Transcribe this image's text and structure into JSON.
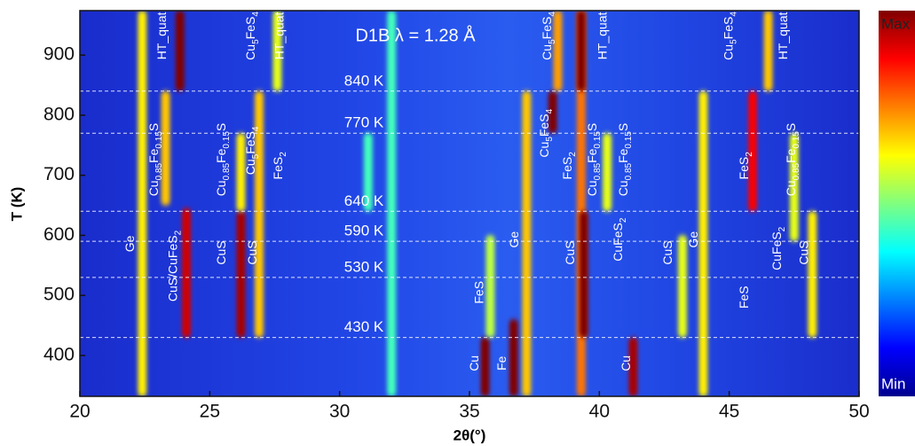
{
  "chart_data": {
    "type": "heatmap",
    "title": "D1B λ = 1.28 Å",
    "x_label": "2θ(°)",
    "y_label": "T (K)",
    "xlim": [
      20,
      50
    ],
    "xticks": [
      20,
      25,
      30,
      35,
      40,
      45,
      50
    ],
    "ylim": [
      332,
      974
    ],
    "yticks": [
      400,
      500,
      600,
      700,
      800,
      900
    ],
    "colorbar": {
      "max_label": "Max",
      "min_label": "Min"
    },
    "temperature_lines": [
      {
        "value": 840,
        "label": "840 K"
      },
      {
        "value": 770,
        "label": "770 K"
      },
      {
        "value": 640,
        "label": "640 K"
      },
      {
        "value": 590,
        "label": "590 K"
      },
      {
        "value": 530,
        "label": "530 K"
      },
      {
        "value": 430,
        "label": "430 K"
      }
    ],
    "streaks": [
      {
        "x": 22.4,
        "tmin": 332,
        "tmax": 974,
        "level": 0.55
      },
      {
        "x": 23.3,
        "tmin": 650,
        "tmax": 840,
        "level": 0.6
      },
      {
        "x": 23.85,
        "tmin": 840,
        "tmax": 974,
        "level": 1.0
      },
      {
        "x": 24.1,
        "tmin": 430,
        "tmax": 645,
        "level": 0.9
      },
      {
        "x": 26.2,
        "tmin": 430,
        "tmax": 640,
        "level": 0.95
      },
      {
        "x": 26.2,
        "tmin": 640,
        "tmax": 770,
        "level": 0.55
      },
      {
        "x": 26.9,
        "tmin": 430,
        "tmax": 840,
        "level": 0.6
      },
      {
        "x": 27.6,
        "tmin": 840,
        "tmax": 974,
        "level": 0.5
      },
      {
        "x": 31.1,
        "tmin": 640,
        "tmax": 770,
        "level": 0.3
      },
      {
        "x": 32.0,
        "tmin": 332,
        "tmax": 974,
        "level": 0.3
      },
      {
        "x": 35.6,
        "tmin": 332,
        "tmax": 430,
        "level": 1.0
      },
      {
        "x": 35.8,
        "tmin": 430,
        "tmax": 600,
        "level": 0.45
      },
      {
        "x": 36.7,
        "tmin": 332,
        "tmax": 460,
        "level": 1.0
      },
      {
        "x": 37.2,
        "tmin": 332,
        "tmax": 840,
        "level": 0.6
      },
      {
        "x": 38.2,
        "tmin": 770,
        "tmax": 840,
        "level": 1.0
      },
      {
        "x": 38.4,
        "tmin": 840,
        "tmax": 974,
        "level": 0.65
      },
      {
        "x": 39.3,
        "tmin": 332,
        "tmax": 974,
        "level": 0.7
      },
      {
        "x": 39.4,
        "tmin": 430,
        "tmax": 640,
        "level": 1.0
      },
      {
        "x": 39.3,
        "tmin": 840,
        "tmax": 974,
        "level": 1.0
      },
      {
        "x": 40.3,
        "tmin": 640,
        "tmax": 770,
        "level": 0.5
      },
      {
        "x": 41.3,
        "tmin": 332,
        "tmax": 430,
        "level": 0.95
      },
      {
        "x": 43.2,
        "tmin": 430,
        "tmax": 600,
        "level": 0.5
      },
      {
        "x": 44.0,
        "tmin": 332,
        "tmax": 840,
        "level": 0.55
      },
      {
        "x": 45.9,
        "tmin": 640,
        "tmax": 840,
        "level": 0.85
      },
      {
        "x": 46.5,
        "tmin": 840,
        "tmax": 974,
        "level": 0.6
      },
      {
        "x": 47.5,
        "tmin": 590,
        "tmax": 770,
        "level": 0.5
      },
      {
        "x": 48.2,
        "tmin": 430,
        "tmax": 640,
        "level": 0.55
      }
    ],
    "annotations": [
      {
        "text": "HT_quat",
        "x": 23.18,
        "y": 932
      },
      {
        "text": "Cu5FeS4",
        "x": 26.6,
        "y": 932
      },
      {
        "text": "HT_quat",
        "x": 27.7,
        "y": 932
      },
      {
        "text": "Cu5FeS4",
        "x": 38.0,
        "y": 932
      },
      {
        "text": "HT_quat",
        "x": 40.15,
        "y": 932
      },
      {
        "text": "Cu5FeS4",
        "x": 45.0,
        "y": 932
      },
      {
        "text": "HT_quat",
        "x": 47.1,
        "y": 932
      },
      {
        "text": "Cu0.85Fe0.15S",
        "x": 22.87,
        "y": 726
      },
      {
        "text": "Cu0.85Fe0.15S",
        "x": 25.47,
        "y": 726
      },
      {
        "text": "Cu5FeS4",
        "x": 26.6,
        "y": 741
      },
      {
        "text": "FeS2",
        "x": 27.65,
        "y": 716
      },
      {
        "text": "Cu5FeS4",
        "x": 37.9,
        "y": 770
      },
      {
        "text": "FeS2",
        "x": 38.8,
        "y": 716
      },
      {
        "text": "Cu0.85Fe0.15S",
        "x": 39.75,
        "y": 726
      },
      {
        "text": "Cu0.85Fe0.15S",
        "x": 40.95,
        "y": 726
      },
      {
        "text": "FeS2",
        "x": 45.6,
        "y": 716
      },
      {
        "text": "Cu0.85Fe0.15S",
        "x": 47.4,
        "y": 726
      },
      {
        "text": "Ge",
        "x": 21.95,
        "y": 586
      },
      {
        "text": "CuS/CuFeS2",
        "x": 23.6,
        "y": 549
      },
      {
        "text": "CuS",
        "x": 25.47,
        "y": 571
      },
      {
        "text": "CuS",
        "x": 26.66,
        "y": 571
      },
      {
        "text": "FeS",
        "x": 35.4,
        "y": 505
      },
      {
        "text": "Ge",
        "x": 36.74,
        "y": 593
      },
      {
        "text": "CuS",
        "x": 38.9,
        "y": 571
      },
      {
        "text": "CuFeS2",
        "x": 40.74,
        "y": 593
      },
      {
        "text": "CuS",
        "x": 42.65,
        "y": 571
      },
      {
        "text": "Ge",
        "x": 43.64,
        "y": 593
      },
      {
        "text": "FeS",
        "x": 45.6,
        "y": 497
      },
      {
        "text": "CuFeS2",
        "x": 46.86,
        "y": 578
      },
      {
        "text": "CuS",
        "x": 47.9,
        "y": 571
      },
      {
        "text": "Cu",
        "x": 35.2,
        "y": 387
      },
      {
        "text": "Fe",
        "x": 36.26,
        "y": 387
      },
      {
        "text": "Cu",
        "x": 41.05,
        "y": 387
      }
    ]
  }
}
